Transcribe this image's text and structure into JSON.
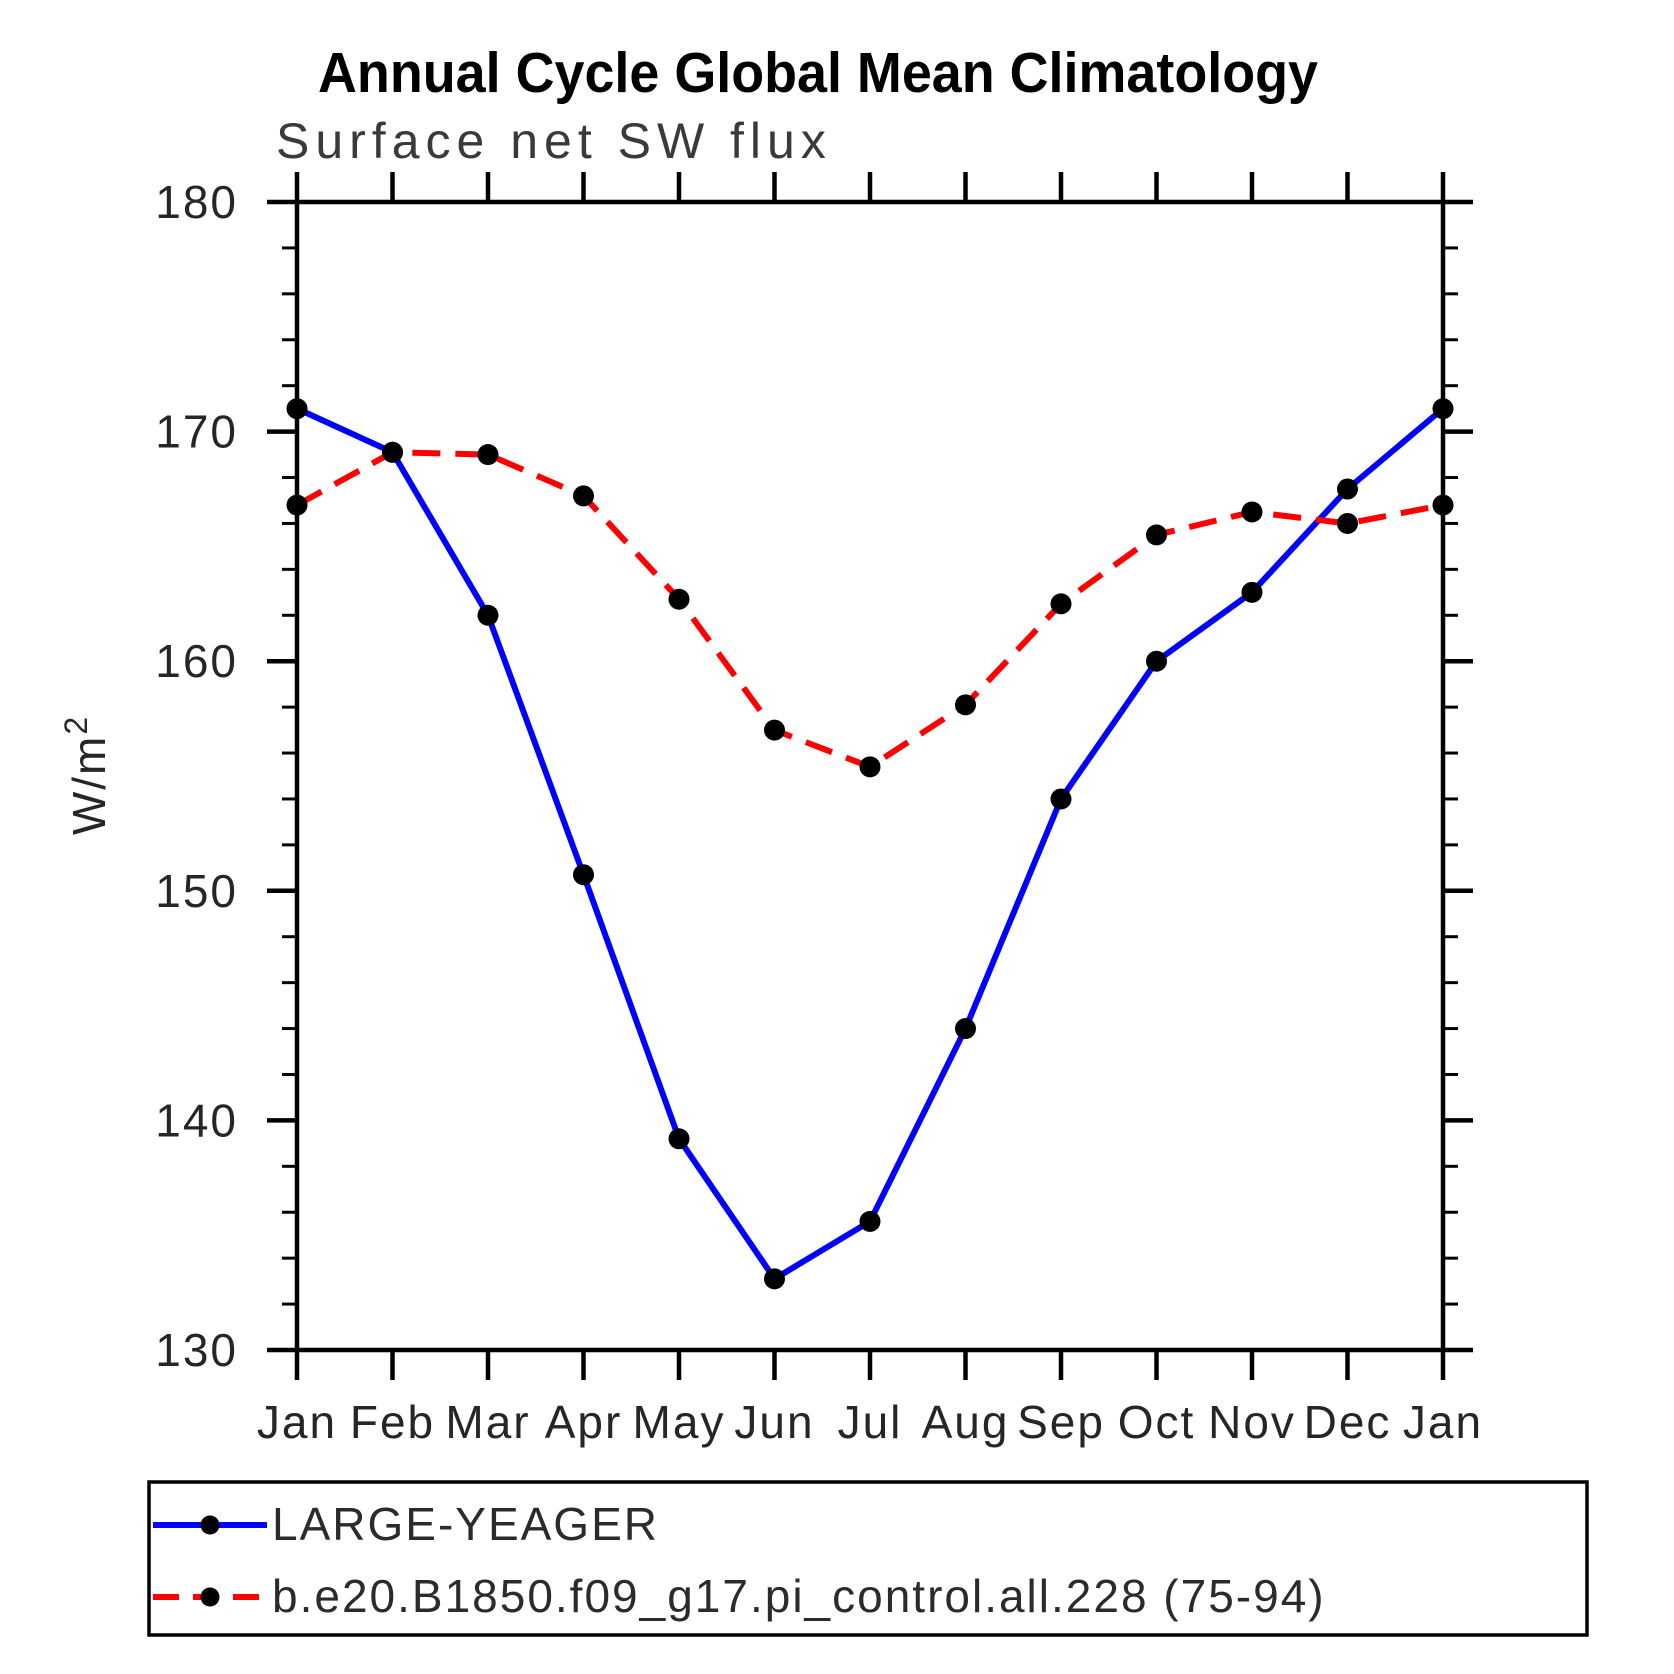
{
  "header": {
    "title": "Annual Cycle Global Mean Climatology",
    "subtitle": "Surface net SW flux"
  },
  "axes": {
    "y_unit_base": "W/m",
    "y_unit_sup": "2",
    "y_min": 130,
    "y_max": 180,
    "y_major_step": 10,
    "y_minor_step": 2,
    "y_tick_labels": [
      "130",
      "140",
      "150",
      "160",
      "170",
      "180"
    ]
  },
  "colors": {
    "axis": "#000000",
    "marker": "#000000",
    "series_obs": "#0000ff",
    "series_model": "#ff0000",
    "legend_border": "#000000"
  },
  "chart_data": {
    "type": "line",
    "title": "Annual Cycle Global Mean Climatology",
    "subtitle": "Surface net SW flux",
    "ylabel": "W/m2",
    "ylim": [
      130,
      180
    ],
    "grid": false,
    "legend_position": "bottom",
    "categories": [
      "Jan",
      "Feb",
      "Mar",
      "Apr",
      "May",
      "Jun",
      "Jul",
      "Aug",
      "Sep",
      "Oct",
      "Nov",
      "Dec",
      "Jan"
    ],
    "series": [
      {
        "name": "LARGE-YEAGER",
        "color": "#0000ff",
        "line_style": "solid",
        "marker": "circle",
        "marker_color": "#000000",
        "values": [
          171.0,
          169.1,
          162.0,
          150.7,
          139.2,
          133.1,
          135.6,
          144.0,
          154.0,
          160.0,
          163.0,
          167.5,
          171.0
        ]
      },
      {
        "name": "b.e20.B1850.f09_g17.pi_control.all.228 (75-94)",
        "color": "#ff0000",
        "line_style": "dashed",
        "marker": "circle",
        "marker_color": "#000000",
        "values": [
          166.8,
          169.1,
          169.0,
          167.2,
          162.7,
          157.0,
          155.4,
          158.1,
          162.5,
          165.5,
          166.5,
          166.0,
          166.8
        ]
      }
    ]
  }
}
